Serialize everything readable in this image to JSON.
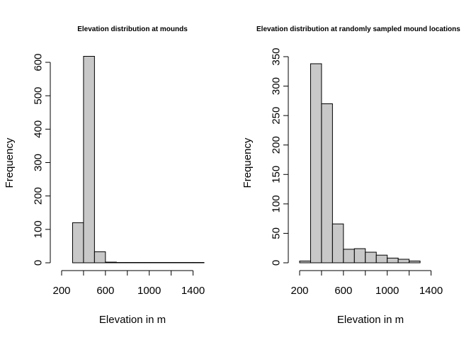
{
  "style": {
    "bar_fill": "#c8c8c8",
    "bar_stroke": "#000000"
  },
  "chart_data": [
    {
      "type": "bar",
      "title": "Elevation distribution at mounds",
      "xlabel": "Elevation in m",
      "ylabel": "Frequency",
      "xlim": [
        200,
        1500
      ],
      "ylim": [
        0,
        620
      ],
      "xticks": [
        200,
        600,
        1000,
        1400
      ],
      "xtick_labels": [
        "200",
        "600",
        "1000",
        "1400"
      ],
      "yticks": [
        0,
        100,
        200,
        300,
        400,
        500,
        600
      ],
      "ytick_labels": [
        "0",
        "100",
        "200",
        "300",
        "400",
        "500",
        "600"
      ],
      "bin_edges": [
        200,
        300,
        400,
        500,
        600,
        700,
        800,
        900,
        1000,
        1100,
        1200,
        1300,
        1400,
        1500
      ],
      "values": [
        0,
        120,
        618,
        33,
        2,
        1,
        1,
        1,
        1,
        1,
        1,
        1,
        1
      ]
    },
    {
      "type": "bar",
      "title": "Elevation distribution at randomly sampled mound locations",
      "xlabel": "Elevation in m",
      "ylabel": "Frequency",
      "xlim": [
        200,
        1500
      ],
      "ylim": [
        0,
        350
      ],
      "xticks": [
        200,
        600,
        1000,
        1400
      ],
      "xtick_labels": [
        "200",
        "600",
        "1000",
        "1400"
      ],
      "yticks": [
        0,
        50,
        100,
        150,
        200,
        250,
        300,
        350
      ],
      "ytick_labels": [
        "0",
        "50",
        "100",
        "150",
        "200",
        "250",
        "300",
        "350"
      ],
      "bin_edges": [
        200,
        300,
        400,
        500,
        600,
        700,
        800,
        900,
        1000,
        1100,
        1200,
        1300,
        1400,
        1500
      ],
      "values": [
        3,
        338,
        270,
        66,
        23,
        24,
        18,
        13,
        8,
        6,
        3,
        0,
        0
      ]
    }
  ]
}
